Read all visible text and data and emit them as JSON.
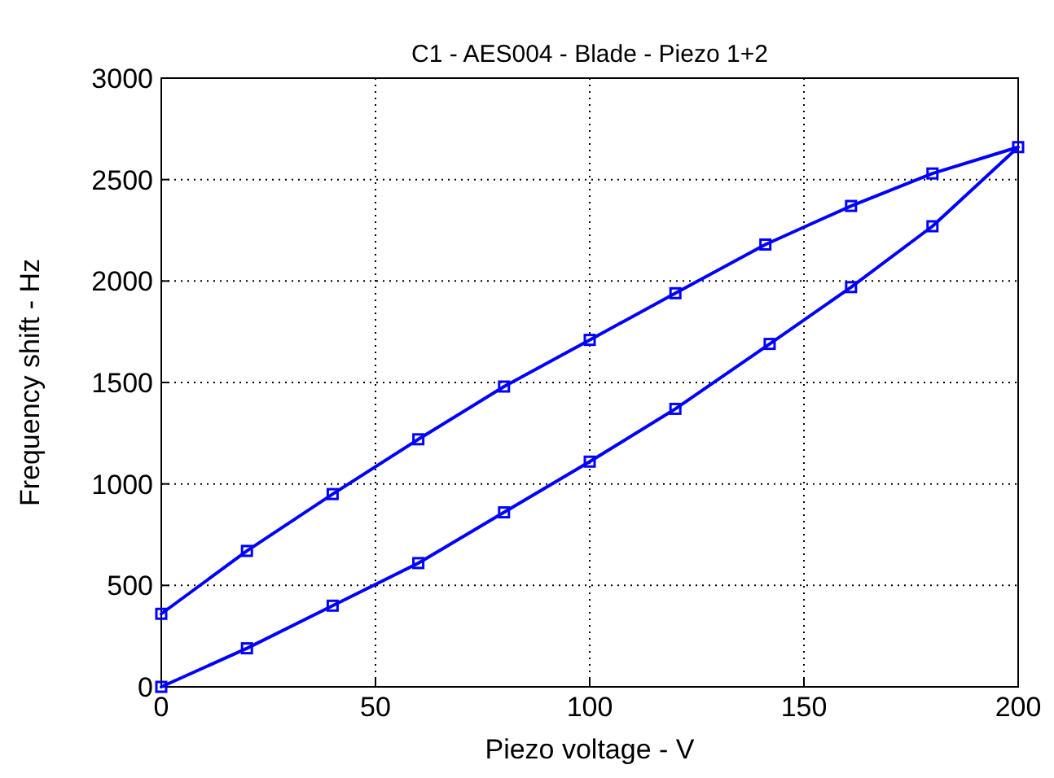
{
  "chart_data": {
    "type": "line",
    "title": "C1 - AES004 - Blade - Piezo 1+2",
    "xlabel": "Piezo voltage - V",
    "ylabel": "Frequency shift - Hz",
    "xlim": [
      0,
      200
    ],
    "xticks": [
      0,
      50,
      100,
      150,
      200
    ],
    "ylim": [
      0,
      3000
    ],
    "yticks": [
      0,
      500,
      1000,
      1500,
      2000,
      2500,
      3000
    ],
    "grid": true,
    "marker": "square",
    "line_style": "solid",
    "series": [
      {
        "color": "#0000ff",
        "x": [
          0,
          20,
          40,
          60,
          80,
          100,
          120,
          142,
          161,
          180,
          200,
          180,
          161,
          141,
          120,
          100,
          80,
          60,
          40,
          20,
          0
        ],
        "values": [
          0,
          190,
          400,
          610,
          860,
          1110,
          1370,
          1690,
          1970,
          2270,
          2660,
          2530,
          2370,
          2180,
          1940,
          1710,
          1480,
          1220,
          950,
          670,
          360
        ]
      }
    ]
  }
}
